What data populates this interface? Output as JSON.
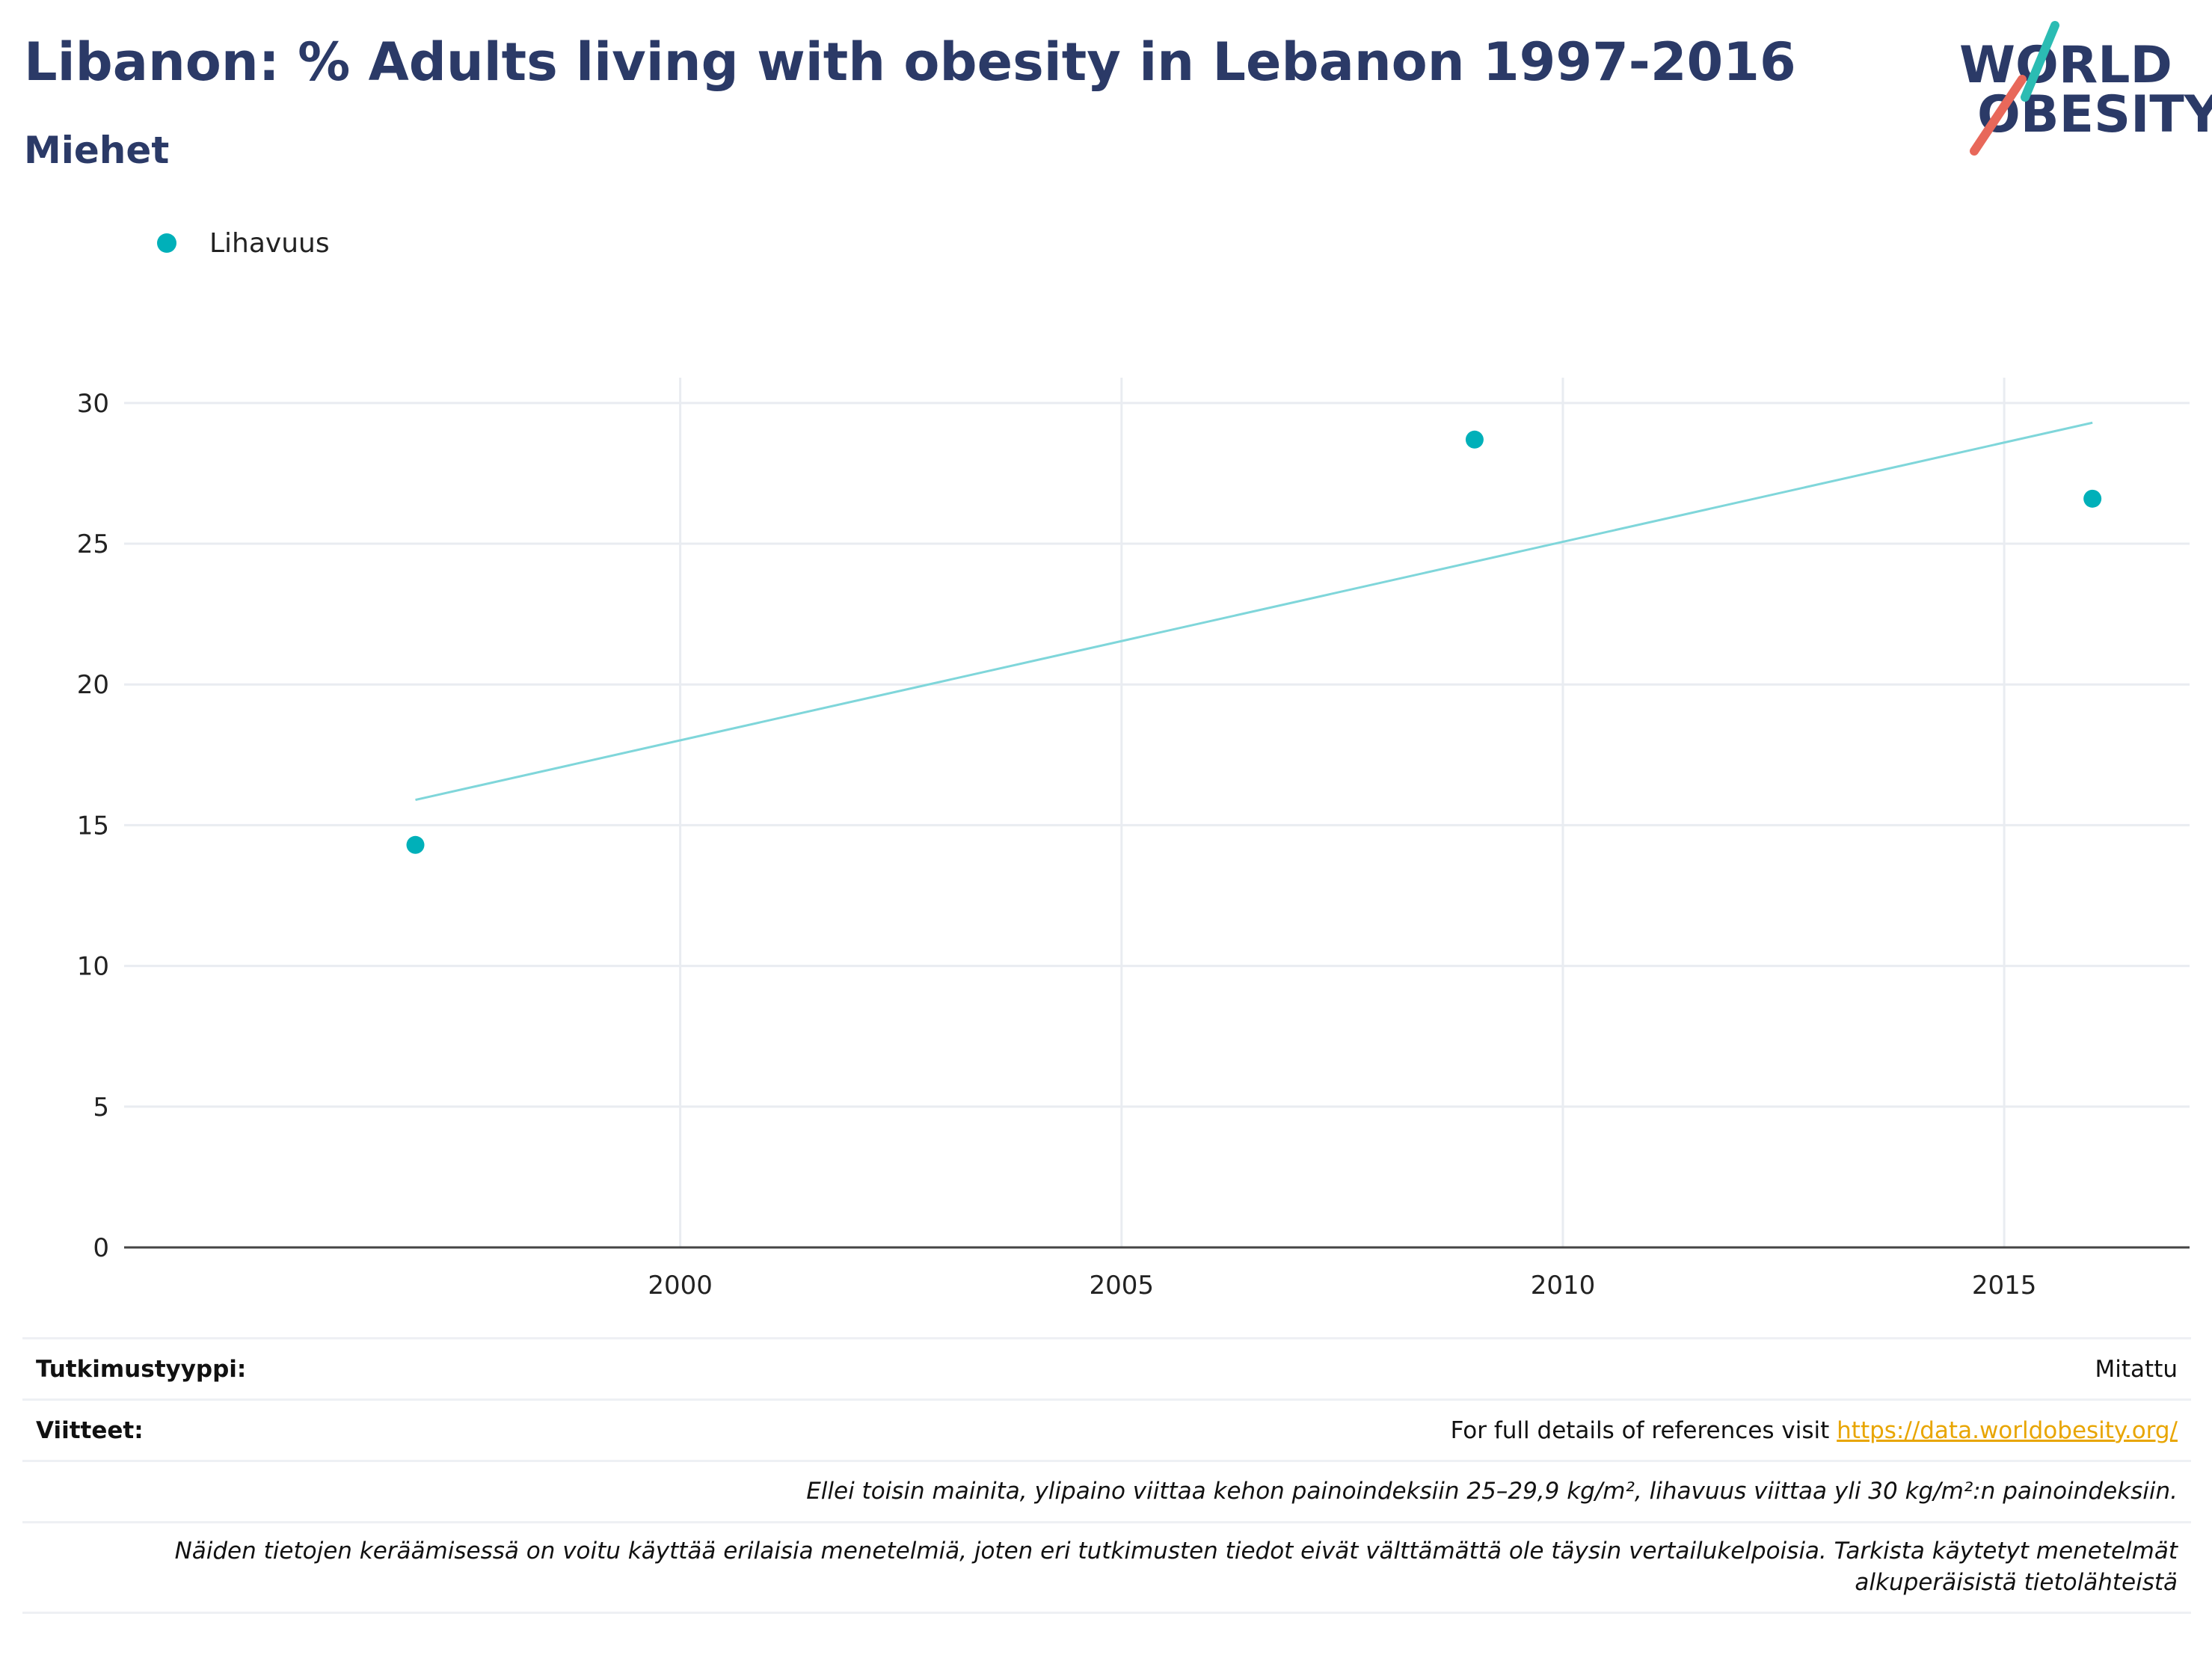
{
  "header": {
    "title": "Libanon: % Adults living with obesity in Lebanon 1997-2016",
    "subtitle": "Miehet"
  },
  "logo": {
    "line1": "WORLD",
    "line2": "OBESITY",
    "accent_teal": "#2bbcb3",
    "accent_red": "#e8685a"
  },
  "chart_data": {
    "type": "scatter",
    "legend": {
      "label": "Lihavuus",
      "placement": "top-left"
    },
    "series": [
      {
        "name": "Lihavuus",
        "color": "#00b0b9",
        "x": [
          1997,
          2009,
          2016
        ],
        "y": [
          14.3,
          28.7,
          26.6
        ]
      }
    ],
    "trendline": {
      "color": "#7fd6da",
      "x": [
        1997,
        2016
      ],
      "y": [
        15.9,
        29.3
      ]
    },
    "x_ticks": [
      2000,
      2005,
      2010,
      2015
    ],
    "y_ticks": [
      0,
      5,
      10,
      15,
      20,
      25,
      30
    ],
    "xlim": [
      1993.7,
      2017.1
    ],
    "ylim": [
      0,
      30.9
    ],
    "grid": true,
    "xlabel": "",
    "ylabel": ""
  },
  "footer": {
    "study_type_label": "Tutkimustyyppi:",
    "study_type_value": "Mitattu",
    "references_label": "Viitteet:",
    "references_text": "For full details of references visit ",
    "references_link": "https://data.worldobesity.org/",
    "note1": "Ellei toisin mainita, ylipaino viittaa kehon painoindeksiin 25–29,9 kg/m², lihavuus viittaa yli 30 kg/m²:n painoindeksiin.",
    "note2": "Näiden tietojen keräämisessä on voitu käyttää erilaisia menetelmiä, joten eri tutkimusten tiedot eivät välttämättä ole täysin vertailukelpoisia. Tarkista käytetyt menetelmät alkuperäisistä tietolähteistä"
  }
}
